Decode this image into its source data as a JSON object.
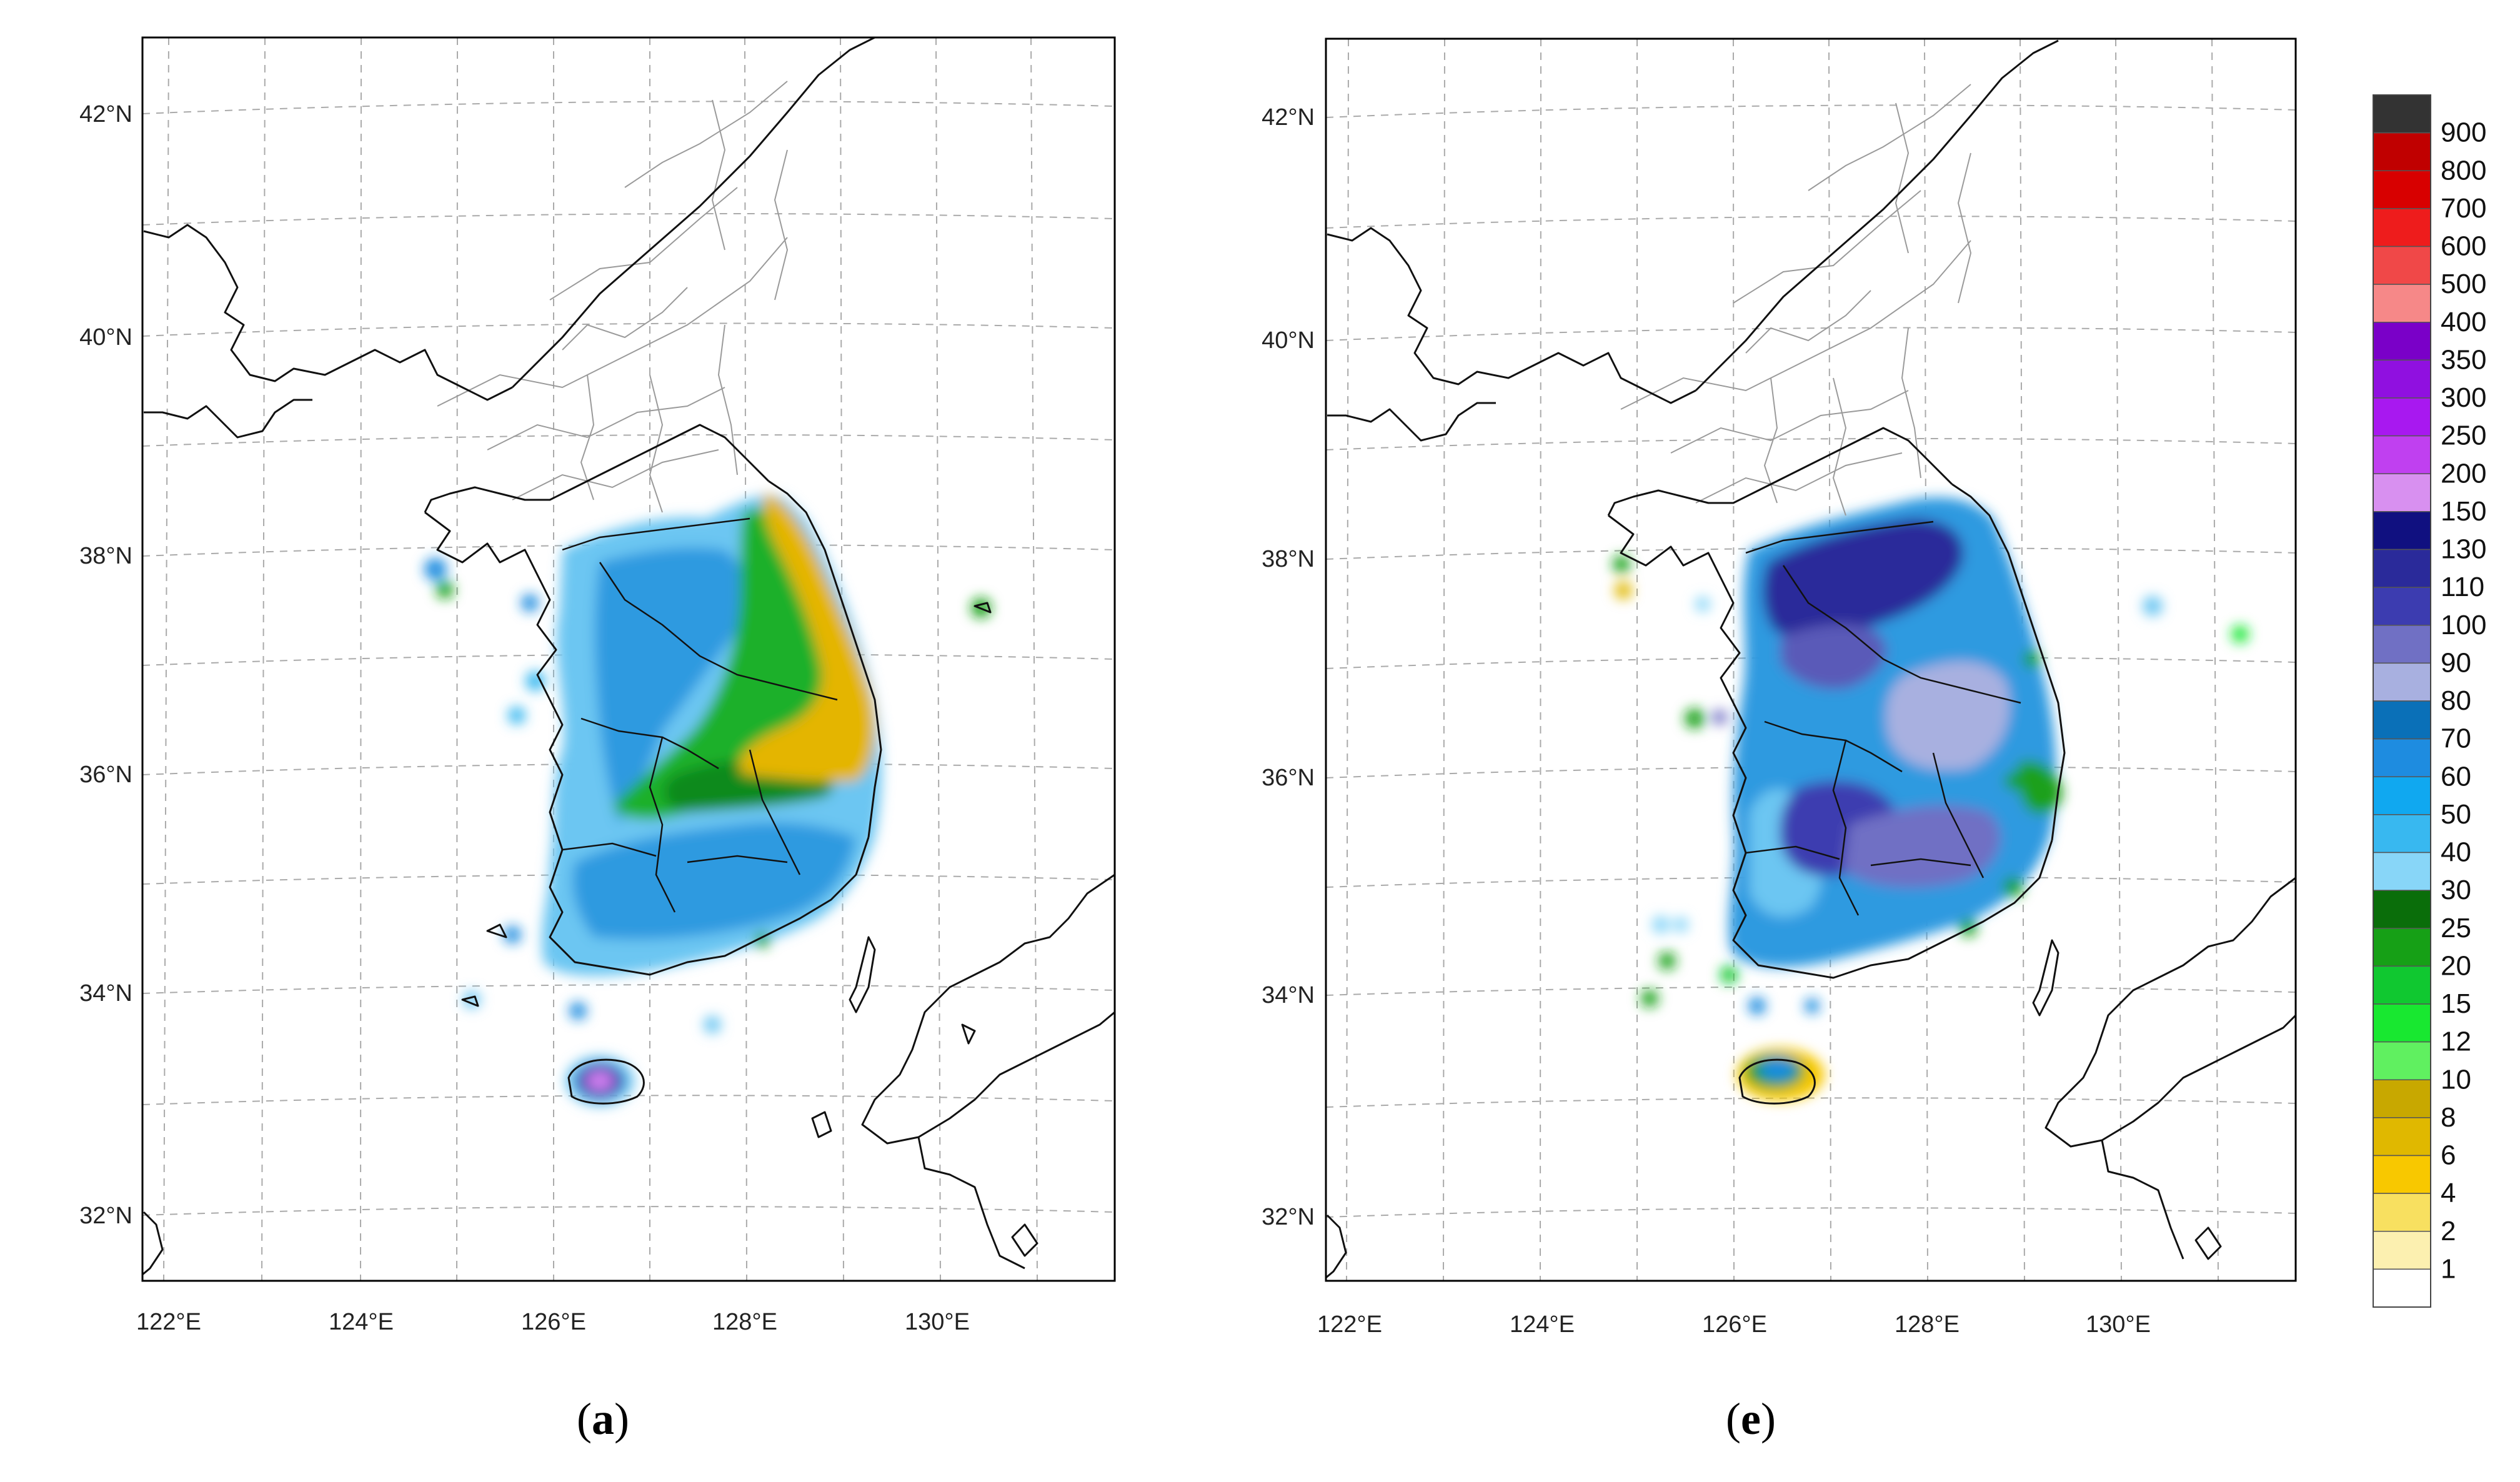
{
  "panels": [
    {
      "id": "a",
      "label": "a"
    },
    {
      "id": "e",
      "label": "e"
    }
  ],
  "axes": {
    "lat_ticks": [
      "42°N",
      "40°N",
      "38°N",
      "36°N",
      "34°N",
      "32°N"
    ],
    "lon_ticks": [
      "122°E",
      "124°E",
      "126°E",
      "128°E",
      "130°E"
    ]
  },
  "colorbar": {
    "levels": [
      "900",
      "800",
      "700",
      "600",
      "500",
      "400",
      "350",
      "300",
      "250",
      "200",
      "150",
      "130",
      "110",
      "100",
      "90",
      "80",
      "70",
      "60",
      "50",
      "40",
      "30",
      "25",
      "20",
      "15",
      "12",
      "10",
      "8",
      "6",
      "4",
      "2",
      "1"
    ],
    "colors": [
      "#333333",
      "#c00000",
      "#d80000",
      "#ee1c1c",
      "#f04848",
      "#f68888",
      "#7a00c8",
      "#9010e0",
      "#a818f0",
      "#c040f0",
      "#d890f0",
      "#101080",
      "#2a2a9a",
      "#3c3cb0",
      "#7070c4",
      "#a8b0e0",
      "#0a70b8",
      "#1e8ce0",
      "#10a8f0",
      "#38b8f0",
      "#88d6f8",
      "#0a6e0a",
      "#16a016",
      "#10c830",
      "#18e830",
      "#60f060",
      "#c8a800",
      "#e0b800",
      "#f8c800",
      "#f8e060",
      "#fcf0b0",
      "#ffffff"
    ]
  },
  "map_colors": {
    "coast": "#111111",
    "admin_boundary": "#9a9a9a",
    "grid": "#aaaaaa"
  }
}
